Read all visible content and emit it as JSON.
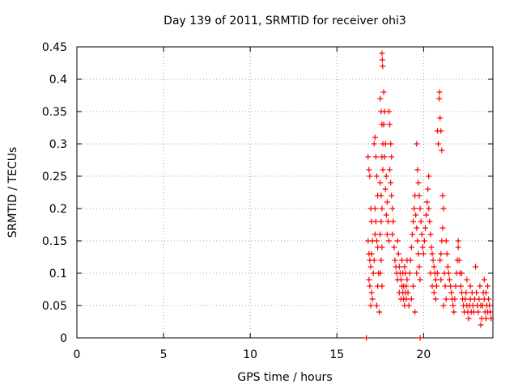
{
  "chart_data": {
    "type": "scatter",
    "title": "Day 139 of 2011, SRMTID for receiver ohi3",
    "xlabel": "GPS time / hours",
    "ylabel": "SRMTID / TECUs",
    "xlim": [
      0,
      24
    ],
    "ylim": [
      0,
      0.45
    ],
    "xticks": [
      0,
      5,
      10,
      15,
      20
    ],
    "xtick_labels": [
      "0",
      "5",
      "10",
      "15",
      "20"
    ],
    "yticks": [
      0,
      0.05,
      0.1,
      0.15,
      0.2,
      0.25,
      0.3,
      0.35,
      0.4,
      0.45
    ],
    "ytick_labels": [
      "0",
      "0.05",
      "0.1",
      "0.15",
      "0.2",
      "0.25",
      "0.3",
      "0.35",
      "0.4",
      "0.45"
    ],
    "grid": true,
    "marker": "+",
    "marker_color": "#ff0000",
    "series": [
      {
        "name": "SRMTID",
        "points": [
          [
            16.7,
            0.0
          ],
          [
            19.8,
            0.0
          ],
          [
            16.8,
            0.28
          ],
          [
            16.85,
            0.26
          ],
          [
            16.9,
            0.25
          ],
          [
            16.95,
            0.2
          ],
          [
            17.0,
            0.18
          ],
          [
            17.05,
            0.15
          ],
          [
            16.8,
            0.15
          ],
          [
            16.85,
            0.13
          ],
          [
            16.9,
            0.12
          ],
          [
            16.95,
            0.11
          ],
          [
            16.85,
            0.09
          ],
          [
            16.9,
            0.08
          ],
          [
            17.0,
            0.07
          ],
          [
            17.05,
            0.06
          ],
          [
            16.95,
            0.05
          ],
          [
            17.1,
            0.1
          ],
          [
            17.0,
            0.13
          ],
          [
            17.15,
            0.3
          ],
          [
            17.2,
            0.31
          ],
          [
            17.25,
            0.28
          ],
          [
            17.3,
            0.25
          ],
          [
            17.35,
            0.22
          ],
          [
            17.2,
            0.2
          ],
          [
            17.25,
            0.18
          ],
          [
            17.3,
            0.15
          ],
          [
            17.15,
            0.12
          ],
          [
            17.4,
            0.1
          ],
          [
            17.35,
            0.08
          ],
          [
            17.3,
            0.05
          ],
          [
            17.45,
            0.04
          ],
          [
            17.2,
            0.16
          ],
          [
            17.35,
            0.14
          ],
          [
            17.5,
            0.37
          ],
          [
            17.55,
            0.35
          ],
          [
            17.6,
            0.33
          ],
          [
            17.65,
            0.3
          ],
          [
            17.6,
            0.28
          ],
          [
            17.65,
            0.26
          ],
          [
            17.5,
            0.24
          ],
          [
            17.55,
            0.22
          ],
          [
            17.6,
            0.2
          ],
          [
            17.55,
            0.18
          ],
          [
            17.5,
            0.16
          ],
          [
            17.6,
            0.14
          ],
          [
            17.55,
            0.12
          ],
          [
            17.5,
            0.1
          ],
          [
            17.6,
            0.08
          ],
          [
            17.6,
            0.44
          ],
          [
            17.62,
            0.43
          ],
          [
            17.64,
            0.42
          ],
          [
            17.7,
            0.38
          ],
          [
            17.75,
            0.35
          ],
          [
            17.7,
            0.33
          ],
          [
            17.8,
            0.3
          ],
          [
            17.75,
            0.28
          ],
          [
            17.85,
            0.25
          ],
          [
            17.8,
            0.23
          ],
          [
            17.9,
            0.21
          ],
          [
            17.85,
            0.19
          ],
          [
            17.95,
            0.18
          ],
          [
            17.9,
            0.16
          ],
          [
            18.0,
            0.15
          ],
          [
            18.0,
            0.35
          ],
          [
            18.05,
            0.33
          ],
          [
            18.1,
            0.3
          ],
          [
            18.15,
            0.28
          ],
          [
            18.05,
            0.26
          ],
          [
            18.1,
            0.24
          ],
          [
            18.15,
            0.22
          ],
          [
            18.2,
            0.2
          ],
          [
            18.25,
            0.18
          ],
          [
            18.2,
            0.16
          ],
          [
            18.3,
            0.14
          ],
          [
            18.35,
            0.12
          ],
          [
            18.4,
            0.11
          ],
          [
            18.45,
            0.1
          ],
          [
            18.5,
            0.09
          ],
          [
            18.5,
            0.15
          ],
          [
            18.55,
            0.13
          ],
          [
            18.6,
            0.11
          ],
          [
            18.65,
            0.1
          ],
          [
            18.7,
            0.09
          ],
          [
            18.75,
            0.08
          ],
          [
            18.8,
            0.07
          ],
          [
            18.85,
            0.06
          ],
          [
            18.9,
            0.05
          ],
          [
            18.95,
            0.07
          ],
          [
            19.0,
            0.08
          ],
          [
            19.05,
            0.09
          ],
          [
            18.6,
            0.07
          ],
          [
            18.7,
            0.06
          ],
          [
            18.8,
            0.1
          ],
          [
            18.9,
            0.11
          ],
          [
            19.0,
            0.06
          ],
          [
            19.1,
            0.07
          ],
          [
            19.15,
            0.05
          ],
          [
            18.75,
            0.12
          ],
          [
            18.85,
            0.08
          ],
          [
            18.95,
            0.1
          ],
          [
            19.05,
            0.12
          ],
          [
            19.2,
            0.1
          ],
          [
            19.25,
            0.12
          ],
          [
            19.3,
            0.14
          ],
          [
            19.35,
            0.16
          ],
          [
            19.4,
            0.18
          ],
          [
            19.45,
            0.2
          ],
          [
            19.5,
            0.22
          ],
          [
            19.55,
            0.19
          ],
          [
            19.6,
            0.17
          ],
          [
            19.65,
            0.15
          ],
          [
            19.7,
            0.13
          ],
          [
            19.75,
            0.11
          ],
          [
            19.8,
            0.09
          ],
          [
            19.3,
            0.06
          ],
          [
            19.4,
            0.08
          ],
          [
            19.5,
            0.04
          ],
          [
            19.6,
            0.1
          ],
          [
            19.6,
            0.3
          ],
          [
            19.65,
            0.26
          ],
          [
            19.7,
            0.24
          ],
          [
            19.75,
            0.22
          ],
          [
            19.8,
            0.2
          ],
          [
            19.85,
            0.18
          ],
          [
            19.9,
            0.16
          ],
          [
            19.95,
            0.14
          ],
          [
            20.0,
            0.13
          ],
          [
            20.05,
            0.15
          ],
          [
            20.1,
            0.17
          ],
          [
            20.15,
            0.19
          ],
          [
            20.2,
            0.21
          ],
          [
            20.25,
            0.23
          ],
          [
            20.3,
            0.25
          ],
          [
            20.3,
            0.2
          ],
          [
            20.35,
            0.18
          ],
          [
            20.4,
            0.16
          ],
          [
            20.45,
            0.14
          ],
          [
            20.5,
            0.13
          ],
          [
            20.55,
            0.12
          ],
          [
            20.6,
            0.11
          ],
          [
            20.65,
            0.1
          ],
          [
            20.7,
            0.09
          ],
          [
            20.75,
            0.08
          ],
          [
            20.8,
            0.1
          ],
          [
            20.4,
            0.1
          ],
          [
            20.5,
            0.08
          ],
          [
            20.6,
            0.07
          ],
          [
            20.7,
            0.06
          ],
          [
            20.8,
            0.32
          ],
          [
            20.85,
            0.3
          ],
          [
            20.9,
            0.37
          ],
          [
            20.92,
            0.38
          ],
          [
            20.95,
            0.34
          ],
          [
            21.0,
            0.32
          ],
          [
            21.05,
            0.29
          ],
          [
            21.1,
            0.22
          ],
          [
            21.15,
            0.2
          ],
          [
            21.1,
            0.17
          ],
          [
            21.05,
            0.15
          ],
          [
            21.0,
            0.13
          ],
          [
            20.95,
            0.12
          ],
          [
            21.2,
            0.1
          ],
          [
            21.25,
            0.08
          ],
          [
            21.3,
            0.06
          ],
          [
            21.15,
            0.05
          ],
          [
            21.0,
            0.09
          ],
          [
            21.3,
            0.15
          ],
          [
            21.35,
            0.13
          ],
          [
            21.4,
            0.11
          ],
          [
            21.45,
            0.1
          ],
          [
            21.5,
            0.09
          ],
          [
            21.55,
            0.08
          ],
          [
            21.6,
            0.07
          ],
          [
            21.65,
            0.06
          ],
          [
            21.7,
            0.05
          ],
          [
            21.75,
            0.04
          ],
          [
            21.8,
            0.06
          ],
          [
            21.85,
            0.08
          ],
          [
            21.9,
            0.1
          ],
          [
            21.95,
            0.12
          ],
          [
            22.0,
            0.14
          ],
          [
            22.0,
            0.15
          ],
          [
            22.05,
            0.12
          ],
          [
            22.1,
            0.1
          ],
          [
            22.15,
            0.08
          ],
          [
            22.2,
            0.07
          ],
          [
            22.25,
            0.06
          ],
          [
            22.3,
            0.05
          ],
          [
            22.35,
            0.04
          ],
          [
            22.4,
            0.06
          ],
          [
            22.45,
            0.07
          ],
          [
            22.5,
            0.05
          ],
          [
            22.55,
            0.04
          ],
          [
            22.6,
            0.03
          ],
          [
            22.65,
            0.05
          ],
          [
            22.7,
            0.06
          ],
          [
            22.75,
            0.04
          ],
          [
            22.8,
            0.07
          ],
          [
            22.85,
            0.05
          ],
          [
            22.9,
            0.04
          ],
          [
            22.95,
            0.06
          ],
          [
            23.0,
            0.11
          ],
          [
            23.05,
            0.07
          ],
          [
            23.1,
            0.05
          ],
          [
            23.15,
            0.04
          ],
          [
            23.2,
            0.06
          ],
          [
            23.25,
            0.08
          ],
          [
            23.3,
            0.05
          ],
          [
            23.35,
            0.03
          ],
          [
            23.4,
            0.05
          ],
          [
            23.45,
            0.07
          ],
          [
            23.5,
            0.06
          ],
          [
            23.55,
            0.04
          ],
          [
            23.6,
            0.03
          ],
          [
            23.65,
            0.05
          ],
          [
            23.7,
            0.04
          ],
          [
            23.75,
            0.06
          ],
          [
            23.8,
            0.05
          ],
          [
            23.85,
            0.04
          ],
          [
            23.9,
            0.03
          ],
          [
            23.7,
            0.08
          ],
          [
            23.5,
            0.09
          ],
          [
            23.3,
            0.02
          ],
          [
            23.6,
            0.07
          ],
          [
            22.5,
            0.09
          ],
          [
            22.7,
            0.08
          ],
          [
            22.2,
            0.1
          ]
        ]
      }
    ]
  }
}
